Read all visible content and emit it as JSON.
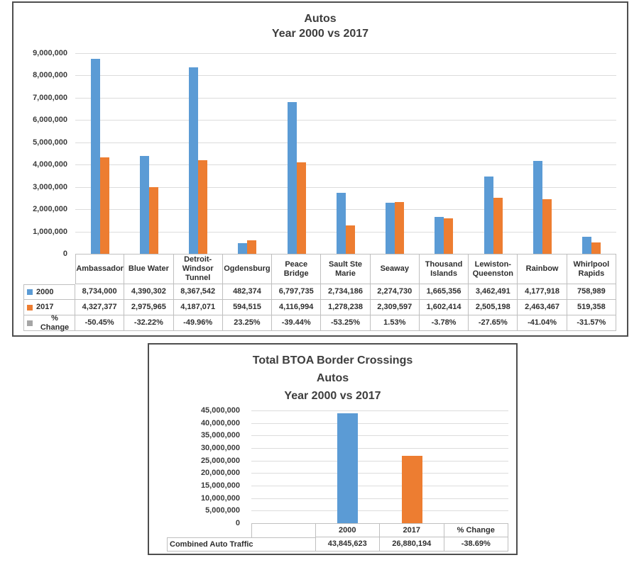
{
  "titles": {
    "top": [
      "Autos",
      "Year 2000 vs 2017"
    ],
    "bottom": [
      "Total BTOA Border Crossings",
      "Autos",
      "Year 2000 vs 2017"
    ]
  },
  "colors": {
    "series_2000": "#5B9BD5",
    "series_2017": "#ED7D31",
    "pct_change_key": "#A5A5A5",
    "gridline": "#DCDCDC",
    "table_border": "#BFBFBF"
  },
  "chart_data": [
    {
      "type": "bar",
      "title": "Autos — Year 2000 vs 2017",
      "categories": [
        "Ambassador",
        "Blue Water",
        "Detroit-Windsor Tunnel",
        "Ogdensburg",
        "Peace Bridge",
        "Sault Ste Marie",
        "Seaway",
        "Thousand Islands",
        "Lewiston-Queenston",
        "Rainbow",
        "Whirlpool Rapids"
      ],
      "category_labels": [
        "Ambassador",
        "Blue Water",
        "Detroit-\nWindsor\nTunnel",
        "Ogdensburg",
        "Peace\nBridge",
        "Sault Ste\nMarie",
        "Seaway",
        "Thousand\nIslands",
        "Lewiston-\nQueenston",
        "Rainbow",
        "Whirlpool\nRapids"
      ],
      "series": [
        {
          "name": "2000",
          "color": "#5B9BD5",
          "values": [
            8734000,
            4390302,
            8367542,
            482374,
            6797735,
            2734186,
            2274730,
            1665356,
            3462491,
            4177918,
            758989
          ]
        },
        {
          "name": "2017",
          "color": "#ED7D31",
          "values": [
            4327377,
            2975965,
            4187071,
            594515,
            4116994,
            1278238,
            2309597,
            1602414,
            2505198,
            2463467,
            519358
          ]
        },
        {
          "name": "% Change",
          "color": "#A5A5A5",
          "plotted": false,
          "values": [
            "-50.45%",
            "-32.22%",
            "-49.96%",
            "23.25%",
            "-39.44%",
            "-53.25%",
            "1.53%",
            "-3.78%",
            "-27.65%",
            "-41.04%",
            "-31.57%"
          ]
        }
      ],
      "ylim": [
        0,
        9000000
      ],
      "ytick_step": 1000000,
      "grid": true,
      "legend_position": "table-left"
    },
    {
      "type": "bar",
      "title": "Total BTOA Border Crossings — Autos — Year 2000 vs 2017",
      "row_label": "Combined Auto Traffic",
      "categories": [
        "",
        "2000",
        "2017",
        "% Change"
      ],
      "values": [
        null,
        43845623,
        26880194,
        null
      ],
      "bar_colors": [
        null,
        "#5B9BD5",
        "#ED7D31",
        null
      ],
      "pct_change": "-38.69%",
      "ylim": [
        0,
        45000000
      ],
      "ytick_step": 5000000,
      "grid": true,
      "legend_position": "none"
    }
  ]
}
